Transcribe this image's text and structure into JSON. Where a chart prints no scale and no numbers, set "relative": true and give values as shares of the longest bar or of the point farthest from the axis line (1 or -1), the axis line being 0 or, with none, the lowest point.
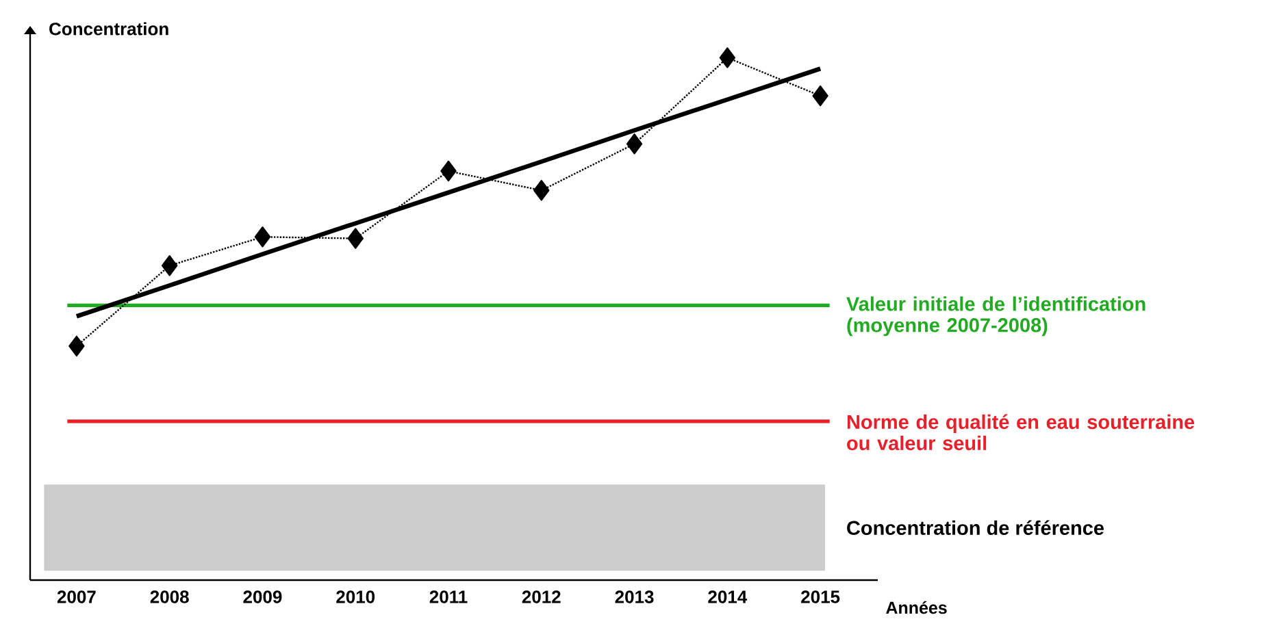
{
  "chart_data": {
    "type": "line",
    "relative": true,
    "xlabel": "Années",
    "ylabel": "Concentration",
    "categories": [
      "2007",
      "2008",
      "2009",
      "2010",
      "2011",
      "2012",
      "2013",
      "2014",
      "2015"
    ],
    "series": [
      {
        "color": "#000000",
        "marker": "diamond",
        "line_style": "dotted",
        "values": [
          0.448,
          0.602,
          0.657,
          0.654,
          0.783,
          0.746,
          0.835,
          1,
          0.927
        ]
      },
      {
        "color": "#000000",
        "marker": "none",
        "line_style": "solid",
        "values": [
          0.505,
          0.564,
          0.624,
          0.683,
          0.742,
          0.801,
          0.861,
          0.92,
          0.979
        ]
      }
    ],
    "ref_lines": [
      {
        "axis": "y",
        "value": 0.526,
        "label": "Valeur initiale de l’identification (moyenne 2007-2008)",
        "color": "#22aa22"
      },
      {
        "axis": "y",
        "value": 0.304,
        "label": "Norme de qualité en eau souterraine ou valeur seuil",
        "color": "#e8202a"
      }
    ],
    "bands": [
      {
        "axis": "y",
        "from": 0.018,
        "to": 0.183,
        "label": "Concentration de référence",
        "color": "#cccccc"
      }
    ]
  }
}
